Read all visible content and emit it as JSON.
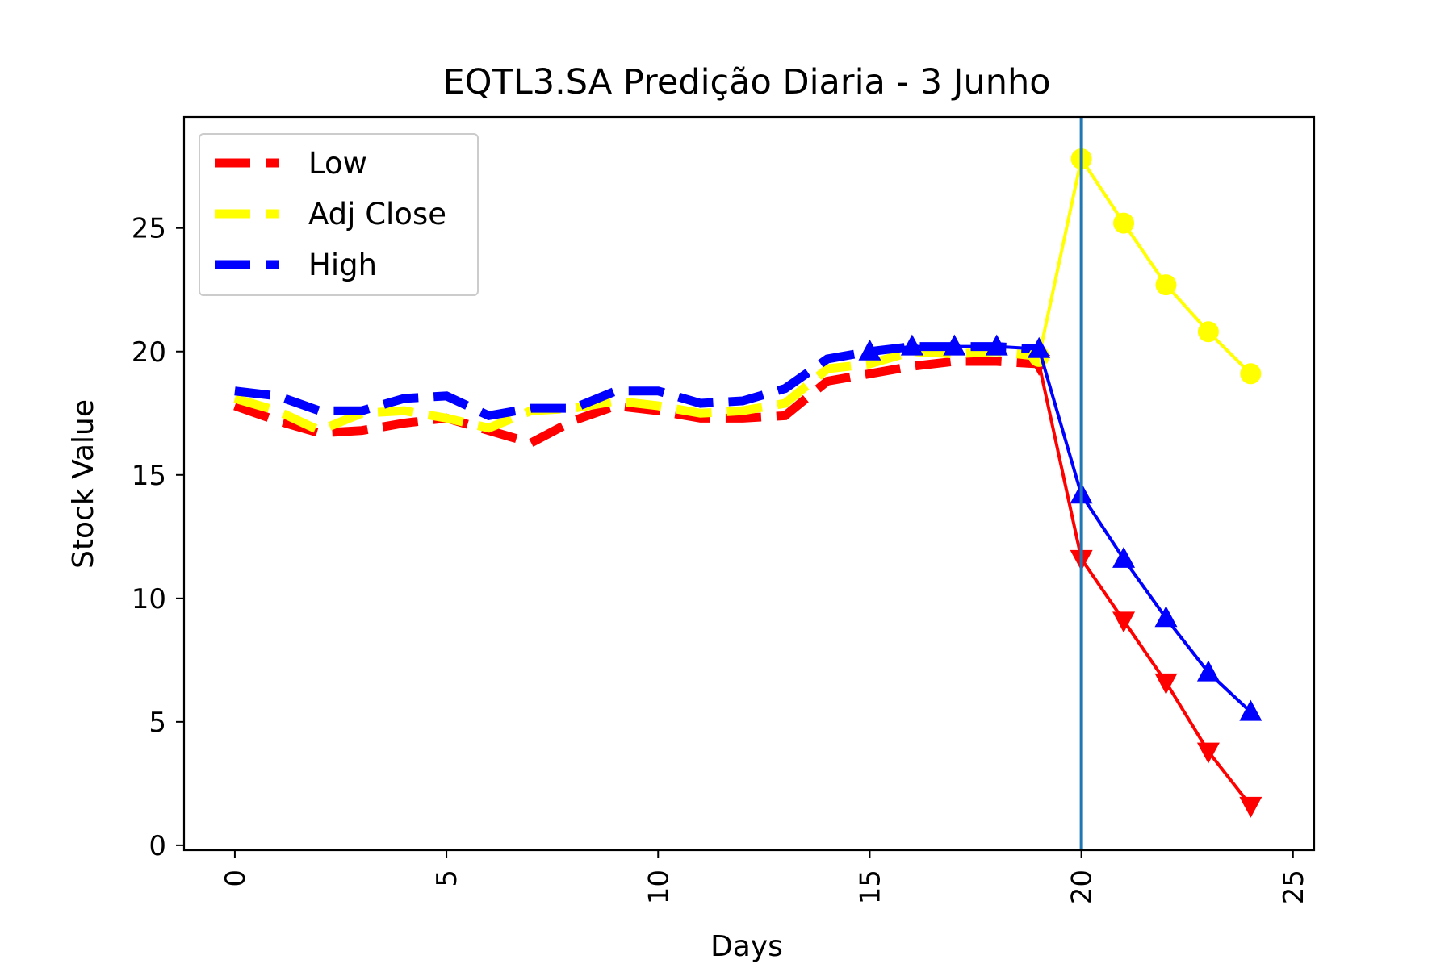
{
  "chart_data": {
    "type": "line",
    "title": "EQTL3.SA Predição Diaria - 3 Junho",
    "xlabel": "Days",
    "ylabel": "Stock Value",
    "xlim": [
      -1.2,
      25.5
    ],
    "ylim": [
      -0.2,
      29.5
    ],
    "xticks": [
      0,
      5,
      10,
      15,
      20,
      25
    ],
    "yticks": [
      0,
      5,
      10,
      15,
      20,
      25
    ],
    "grid": false,
    "legend_position": "top-left",
    "vertical_line": {
      "x": 20,
      "color": "#1f77b4"
    },
    "historical": [
      {
        "name": "Low",
        "color": "#ff0000",
        "style": "dashed",
        "x": [
          0,
          1,
          2,
          3,
          4,
          5,
          6,
          7,
          8,
          9,
          10,
          11,
          12,
          13,
          14,
          15,
          16,
          17,
          18,
          19
        ],
        "y": [
          17.8,
          17.2,
          16.7,
          16.8,
          17.1,
          17.3,
          16.8,
          16.3,
          17.2,
          17.8,
          17.6,
          17.3,
          17.3,
          17.4,
          18.8,
          19.1,
          19.4,
          19.6,
          19.6,
          19.5
        ]
      },
      {
        "name": "Adj Close",
        "color": "#ffff00",
        "style": "dashed",
        "x": [
          0,
          1,
          2,
          3,
          4,
          5,
          6,
          7,
          8,
          9,
          10,
          11,
          12,
          13,
          14,
          15,
          16,
          17,
          18,
          19
        ],
        "y": [
          18.1,
          17.6,
          16.8,
          17.5,
          17.6,
          17.3,
          16.9,
          17.6,
          17.7,
          18.0,
          17.8,
          17.5,
          17.6,
          17.9,
          19.3,
          19.5,
          20.0,
          19.9,
          20.0,
          19.8
        ]
      },
      {
        "name": "High",
        "color": "#0000ff",
        "style": "dashed",
        "x": [
          0,
          1,
          2,
          3,
          4,
          5,
          6,
          7,
          8,
          9,
          10,
          11,
          12,
          13,
          14,
          15,
          16,
          17,
          18,
          19
        ],
        "y": [
          18.4,
          18.2,
          17.6,
          17.6,
          18.1,
          18.2,
          17.4,
          17.7,
          17.7,
          18.4,
          18.4,
          17.9,
          18.0,
          18.5,
          19.7,
          20.0,
          20.2,
          20.2,
          20.2,
          20.1
        ]
      }
    ],
    "predicted": [
      {
        "name": "Low",
        "color": "#ff0000",
        "marker": "triangle-down",
        "x": [
          19,
          20,
          21,
          22,
          23,
          24
        ],
        "y": [
          19.5,
          11.6,
          9.1,
          6.6,
          3.8,
          1.6
        ]
      },
      {
        "name": "Adj Close",
        "color": "#ffff00",
        "marker": "circle",
        "x": [
          19,
          20,
          21,
          22,
          23,
          24
        ],
        "y": [
          19.8,
          27.8,
          25.2,
          22.7,
          20.8,
          19.1
        ]
      },
      {
        "name": "High",
        "color": "#0000ff",
        "marker": "triangle-up",
        "x": [
          15,
          16,
          17,
          18,
          19,
          20,
          21,
          22,
          23,
          24
        ],
        "y": [
          20.0,
          20.2,
          20.2,
          20.2,
          20.1,
          14.2,
          11.6,
          9.2,
          7.0,
          5.4
        ]
      }
    ],
    "legend": [
      {
        "label": "Low",
        "color": "#ff0000"
      },
      {
        "label": "Adj Close",
        "color": "#ffff00"
      },
      {
        "label": "High",
        "color": "#0000ff"
      }
    ]
  }
}
